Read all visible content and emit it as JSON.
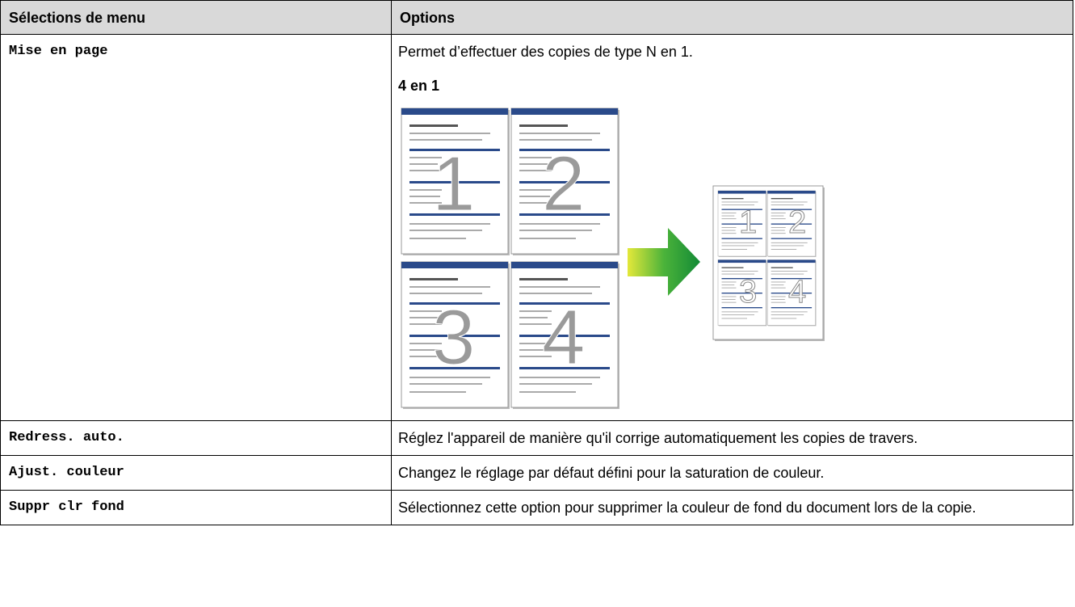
{
  "table": {
    "header": [
      "Sélections de menu",
      "Options"
    ],
    "rows": [
      {
        "menu": "Mise en page",
        "description": "Permet d’effectuer des copies de type N en 1.",
        "subheading": "4 en 1",
        "illustration": [
          "1",
          "2",
          "3",
          "4"
        ]
      },
      {
        "menu": "Redress. auto.",
        "description": "Réglez l'appareil de manière qu'il corrige automatiquement les copies de travers."
      },
      {
        "menu": "Ajust. couleur",
        "description": "Changez le réglage par défaut défini pour la saturation de couleur."
      },
      {
        "menu": "Suppr clr fond",
        "description": "Sélectionnez cette option pour supprimer la couleur de fond du document lors de la copie."
      }
    ]
  }
}
